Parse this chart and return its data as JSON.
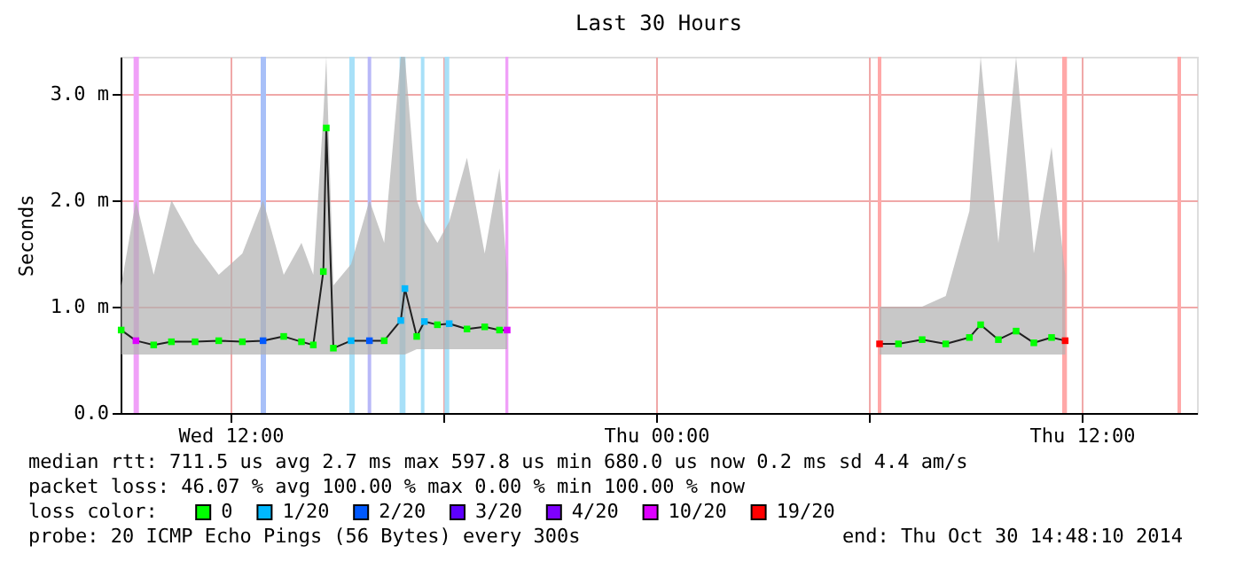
{
  "chart_data": {
    "type": "line",
    "title": "Last 30 Hours",
    "ylabel": "Seconds",
    "legend_title": "loss color:",
    "legend": "bottom",
    "grid": true,
    "xlim": [
      "2014-10-29T08:54",
      "2014-10-30T15:15"
    ],
    "xticks": [
      {
        "value": "2014-10-29T12:00",
        "label": "Wed 12:00"
      },
      {
        "value": "2014-10-29T18:00",
        "label": null
      },
      {
        "value": "2014-10-30T00:00",
        "label": "Thu 00:00"
      },
      {
        "value": "2014-10-30T06:00",
        "label": null
      },
      {
        "value": "2014-10-30T12:00",
        "label": "Thu 12:00"
      }
    ],
    "ylim": [
      0,
      3.35
    ],
    "yticks": [
      {
        "value": 0,
        "label": "0.0"
      },
      {
        "value": 1,
        "label": "1.0 m"
      },
      {
        "value": 2,
        "label": "2.0 m"
      },
      {
        "value": 3,
        "label": "3.0 m"
      }
    ],
    "bands": [
      {
        "axis": "x",
        "from": "2014-10-29T09:16",
        "to": "2014-10-29T09:25",
        "color": "#f0a0f8"
      },
      {
        "axis": "x",
        "from": "2014-10-29T12:51",
        "to": "2014-10-29T13:00",
        "color": "#a8c0f8"
      },
      {
        "axis": "x",
        "from": "2014-10-29T15:21",
        "to": "2014-10-29T15:30",
        "color": "#a8e0f8"
      },
      {
        "axis": "x",
        "from": "2014-10-29T15:52",
        "to": "2014-10-29T15:58",
        "color": "#b8b8f8"
      },
      {
        "axis": "x",
        "from": "2014-10-29T16:46",
        "to": "2014-10-29T16:56",
        "color": "#a8e0f8"
      },
      {
        "axis": "x",
        "from": "2014-10-29T17:22",
        "to": "2014-10-29T17:28",
        "color": "#a8e0f8"
      },
      {
        "axis": "x",
        "from": "2014-10-29T18:02",
        "to": "2014-10-29T18:10",
        "color": "#a8e0f8"
      },
      {
        "axis": "x",
        "from": "2014-10-29T19:45",
        "to": "2014-10-29T19:50",
        "color": "#f0a0f8"
      },
      {
        "axis": "x",
        "from": "2014-10-30T06:15",
        "to": "2014-10-30T06:21",
        "color": "#ffa8a8"
      },
      {
        "axis": "x",
        "from": "2014-10-30T11:27",
        "to": "2014-10-30T11:35",
        "color": "#ffa8a8"
      },
      {
        "axis": "x",
        "from": "2014-10-30T14:42",
        "to": "2014-10-30T14:48",
        "color": "#ffa8a8"
      }
    ],
    "series": [
      {
        "color": "#202020",
        "x": [
          "2014-10-29T08:55",
          "2014-10-29T09:20",
          "2014-10-29T09:50",
          "2014-10-29T10:20",
          "2014-10-29T11:00",
          "2014-10-29T11:40",
          "2014-10-29T12:20",
          "2014-10-29T12:55",
          "2014-10-29T13:30",
          "2014-10-29T14:00",
          "2014-10-29T14:20",
          "2014-10-29T14:37",
          "2014-10-29T14:42",
          "2014-10-29T14:54",
          "2014-10-29T15:24",
          "2014-10-29T15:55",
          "2014-10-29T16:20",
          "2014-10-29T16:48",
          "2014-10-29T16:55",
          "2014-10-29T17:15",
          "2014-10-29T17:28",
          "2014-10-29T17:50",
          "2014-10-29T18:10",
          "2014-10-29T18:40",
          "2014-10-29T19:10",
          "2014-10-29T19:35",
          "2014-10-29T19:48",
          "2014-10-29T22:00",
          "2014-10-30T06:18",
          "2014-10-30T06:50",
          "2014-10-30T07:30",
          "2014-10-30T08:10",
          "2014-10-30T08:50",
          "2014-10-30T09:09",
          "2014-10-30T09:39",
          "2014-10-30T10:09",
          "2014-10-30T10:39",
          "2014-10-30T11:09",
          "2014-10-30T11:32"
        ],
        "values": [
          0.78,
          0.68,
          0.64,
          0.67,
          0.67,
          0.68,
          0.67,
          0.68,
          0.72,
          0.67,
          0.64,
          1.33,
          2.68,
          0.61,
          0.68,
          0.68,
          0.68,
          0.87,
          1.17,
          0.72,
          0.86,
          0.83,
          0.84,
          0.79,
          0.81,
          0.78,
          0.78,
          null,
          0.65,
          0.65,
          0.69,
          0.65,
          0.71,
          0.83,
          0.69,
          0.77,
          0.66,
          0.71,
          0.68
        ],
        "lower": [
          0.55,
          0.55,
          0.55,
          0.55,
          0.55,
          0.55,
          0.55,
          0.55,
          0.55,
          0.55,
          0.55,
          0.55,
          0.55,
          0.55,
          0.55,
          0.55,
          0.55,
          0.55,
          0.55,
          0.6,
          0.6,
          0.6,
          0.6,
          0.6,
          0.6,
          0.6,
          0.6,
          null,
          0.55,
          0.55,
          0.55,
          0.55,
          0.55,
          0.55,
          0.55,
          0.55,
          0.55,
          0.55,
          0.55
        ],
        "upper": [
          1.2,
          2.0,
          1.3,
          2.0,
          1.6,
          1.3,
          1.5,
          2.0,
          1.3,
          1.6,
          1.3,
          2.8,
          3.35,
          1.2,
          1.4,
          2.0,
          1.6,
          3.35,
          3.35,
          2.0,
          1.8,
          1.6,
          1.8,
          2.4,
          1.5,
          2.3,
          1.3,
          null,
          1.0,
          1.0,
          1.0,
          1.1,
          1.9,
          3.35,
          1.6,
          3.35,
          1.5,
          2.5,
          1.3
        ]
      },
      {
        "type": "scatter",
        "name": "0",
        "color": "#00ff00",
        "marker": "square",
        "x": [
          "2014-10-29T08:55",
          "2014-10-29T09:50",
          "2014-10-29T10:20",
          "2014-10-29T11:00",
          "2014-10-29T11:40",
          "2014-10-29T12:20",
          "2014-10-29T13:30",
          "2014-10-29T14:00",
          "2014-10-29T14:20",
          "2014-10-29T14:37",
          "2014-10-29T14:42",
          "2014-10-29T14:54",
          "2014-10-29T16:20",
          "2014-10-29T17:15",
          "2014-10-29T17:50",
          "2014-10-29T18:40",
          "2014-10-29T19:10",
          "2014-10-29T19:35",
          "2014-10-30T06:50",
          "2014-10-30T07:30",
          "2014-10-30T08:10",
          "2014-10-30T08:50",
          "2014-10-30T09:09",
          "2014-10-30T09:39",
          "2014-10-30T10:09",
          "2014-10-30T10:39",
          "2014-10-30T11:09"
        ],
        "values": [
          0.78,
          0.64,
          0.67,
          0.67,
          0.68,
          0.67,
          0.72,
          0.67,
          0.64,
          1.33,
          2.68,
          0.61,
          0.68,
          0.72,
          0.83,
          0.79,
          0.81,
          0.78,
          0.65,
          0.69,
          0.65,
          0.71,
          0.83,
          0.69,
          0.77,
          0.66,
          0.71
        ]
      },
      {
        "type": "scatter",
        "name": "1/20",
        "color": "#00b8ff",
        "marker": "square",
        "x": [
          "2014-10-29T15:24",
          "2014-10-29T16:48",
          "2014-10-29T16:55",
          "2014-10-29T17:28",
          "2014-10-29T18:10"
        ],
        "values": [
          0.68,
          0.87,
          1.17,
          0.86,
          0.84
        ]
      },
      {
        "type": "scatter",
        "name": "2/20",
        "color": "#0059ff",
        "marker": "square",
        "x": [
          "2014-10-29T12:55",
          "2014-10-29T15:55"
        ],
        "values": [
          0.68,
          0.68
        ]
      },
      {
        "type": "scatter",
        "name": "3/20",
        "color": "#5e00ff"
      },
      {
        "type": "scatter",
        "name": "4/20",
        "color": "#7e00ff"
      },
      {
        "type": "scatter",
        "name": "10/20",
        "color": "#dd00ff",
        "marker": "square",
        "x": [
          "2014-10-29T09:20",
          "2014-10-29T19:48"
        ],
        "values": [
          0.68,
          0.78
        ]
      },
      {
        "type": "scatter",
        "name": "19/20",
        "color": "#ff0000",
        "marker": "square",
        "x": [
          "2014-10-30T06:18",
          "2014-10-30T11:32"
        ],
        "values": [
          0.65,
          0.68
        ]
      }
    ],
    "annotations": [
      "median rtt:  711.5 us avg  2.7 ms max  597.8 us min  680.0 us now  0.2 ms sd  4.4   am/s",
      "packet loss: 46.07 % avg  100.00 % max  0.00 % min  100.00 % now",
      "probe:        20 ICMP Echo Pings (56 Bytes) every 300s",
      "end: Thu Oct 30 14:48:10 2014"
    ]
  }
}
